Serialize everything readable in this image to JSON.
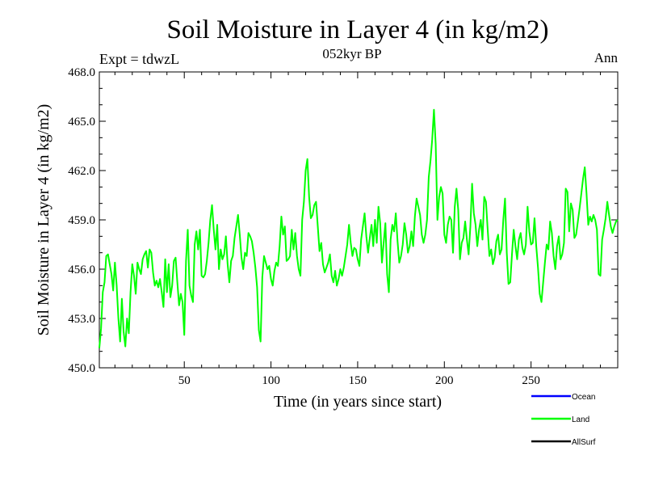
{
  "chart_data": {
    "type": "line",
    "title": "Soil Moisture in Layer 4 (in kg/m2)",
    "subtitle": "052kyr BP",
    "left_label": "Expt = tdwzL",
    "right_label": "Ann",
    "xlabel": "Time (in years since start)",
    "ylabel": "Soil Moisture in Layer 4 (in kg/m2)",
    "xlim": [
      1,
      300
    ],
    "ylim": [
      450,
      468
    ],
    "x_ticks": [
      50,
      100,
      150,
      200,
      250
    ],
    "x_tick_labels": [
      "50",
      "100",
      "150",
      "200",
      "250"
    ],
    "y_ticks": [
      450,
      453,
      456,
      459,
      462,
      465,
      468
    ],
    "y_tick_labels": [
      "450.0",
      "453.0",
      "456.0",
      "459.0",
      "462.0",
      "465.0",
      "468.0"
    ],
    "legend": {
      "position": "bottom-right",
      "entries": [
        {
          "label": "Ocean",
          "color": "#0000ff"
        },
        {
          "label": "Land",
          "color": "#00ff00"
        },
        {
          "label": "AllSurf",
          "color": "#000000"
        }
      ]
    },
    "series": [
      {
        "name": "Land",
        "color": "#00ff00",
        "x_start": 1,
        "x_step": 1,
        "values": [
          451.2,
          452.4,
          454.6,
          455.2,
          456.8,
          456.9,
          456.3,
          455.7,
          454.7,
          456.4,
          455.0,
          453.0,
          451.6,
          454.2,
          452.2,
          451.3,
          453.0,
          452.1,
          454.6,
          456.3,
          455.6,
          454.5,
          456.4,
          456.0,
          455.7,
          456.6,
          456.9,
          457.1,
          456.1,
          457.2,
          457.0,
          455.8,
          455.0,
          455.3,
          454.9,
          455.4,
          454.6,
          453.7,
          456.6,
          454.6,
          456.3,
          454.3,
          455.0,
          456.5,
          456.7,
          455.2,
          453.8,
          454.5,
          454.0,
          452.0,
          456.5,
          458.4,
          455.0,
          454.4,
          454.0,
          457.5,
          458.3,
          457.2,
          458.4,
          455.6,
          455.5,
          455.7,
          456.5,
          457.6,
          459.0,
          459.9,
          458.4,
          457.2,
          458.7,
          456.0,
          457.2,
          456.6,
          456.9,
          458.0,
          456.3,
          455.2,
          456.5,
          456.8,
          457.9,
          458.6,
          459.3,
          458.1,
          456.7,
          456.0,
          457.0,
          456.8,
          458.2,
          458.0,
          457.7,
          457.0,
          456.1,
          454.9,
          452.3,
          451.6,
          455.5,
          456.8,
          456.4,
          456.0,
          456.2,
          455.4,
          455.0,
          455.9,
          456.4,
          456.2,
          457.4,
          459.2,
          458.1,
          458.6,
          456.5,
          456.6,
          456.8,
          458.4,
          457.2,
          458.2,
          456.8,
          456.0,
          455.6,
          459.0,
          460.1,
          462.0,
          462.7,
          460.4,
          459.1,
          459.3,
          459.9,
          460.1,
          458.6,
          457.1,
          457.6,
          456.3,
          455.8,
          456.1,
          456.4,
          456.9,
          455.6,
          455.2,
          455.9,
          455.0,
          455.4,
          456.0,
          455.6,
          456.1,
          456.8,
          457.5,
          458.7,
          457.6,
          456.8,
          457.3,
          457.2,
          456.6,
          456.2,
          457.8,
          458.6,
          459.4,
          458.0,
          457.0,
          457.9,
          458.7,
          457.4,
          459.0,
          457.6,
          459.8,
          458.8,
          456.4,
          457.6,
          458.8,
          455.7,
          454.6,
          457.8,
          458.7,
          458.3,
          459.4,
          457.7,
          456.4,
          456.8,
          457.5,
          458.8,
          458.1,
          457.0,
          457.4,
          458.3,
          457.4,
          459.2,
          460.3,
          459.8,
          459.3,
          458.1,
          457.6,
          458.1,
          459.0,
          461.6,
          462.6,
          463.9,
          465.7,
          463.6,
          459.0,
          460.4,
          461.0,
          460.6,
          458.1,
          457.6,
          458.7,
          459.2,
          459.0,
          457.0,
          459.8,
          460.9,
          459.6,
          456.6,
          457.6,
          457.9,
          458.9,
          457.8,
          456.9,
          458.6,
          461.2,
          459.4,
          458.7,
          457.4,
          458.4,
          459.0,
          457.8,
          460.4,
          460.1,
          458.4,
          456.8,
          457.2,
          456.3,
          456.7,
          457.7,
          458.1,
          456.9,
          457.2,
          459.0,
          460.3,
          457.0,
          455.1,
          455.2,
          456.9,
          458.4,
          457.4,
          456.6,
          457.8,
          458.2,
          457.3,
          456.9,
          457.5,
          459.8,
          458.3,
          457.5,
          457.6,
          459.1,
          457.4,
          456.1,
          454.5,
          454.0,
          455.2,
          456.4,
          457.5,
          457.2,
          458.9,
          458.2,
          456.8,
          456.0,
          457.4,
          458.0,
          456.6,
          456.9,
          457.6,
          460.9,
          460.7,
          458.3,
          460.0,
          459.6,
          457.9,
          458.1,
          458.9,
          459.7,
          460.6,
          461.5,
          462.2,
          460.6,
          458.7,
          459.2,
          458.9,
          459.3,
          459.0,
          458.4,
          455.7,
          455.6,
          457.8,
          458.4,
          459.1,
          460.1,
          459.3,
          458.6,
          458.2,
          458.6,
          458.9,
          459.0
        ]
      }
    ]
  }
}
